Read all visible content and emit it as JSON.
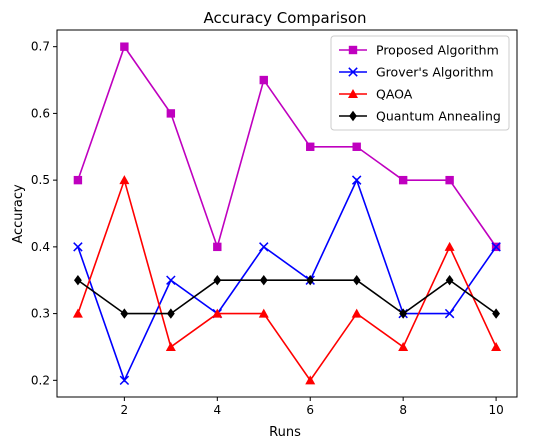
{
  "chart_data": {
    "type": "line",
    "title": "Accuracy Comparison",
    "xlabel": "Runs",
    "ylabel": "Accuracy",
    "x": [
      1,
      2,
      3,
      4,
      5,
      6,
      7,
      8,
      9,
      10
    ],
    "xlim": [
      0.55,
      10.45
    ],
    "ylim": [
      0.175,
      0.725
    ],
    "xticks": [
      2,
      4,
      6,
      8,
      10
    ],
    "yticks": [
      0.2,
      0.3,
      0.4,
      0.5,
      0.6,
      0.7
    ],
    "grid": false,
    "legend_position": "top-right",
    "series": [
      {
        "name": "Proposed Algorithm",
        "color": "#bf00bf",
        "marker": "square",
        "values": [
          0.5,
          0.7,
          0.6,
          0.4,
          0.65,
          0.55,
          0.55,
          0.5,
          0.5,
          0.4
        ]
      },
      {
        "name": "Grover's Algorithm",
        "color": "#0000ff",
        "marker": "x",
        "values": [
          0.4,
          0.2,
          0.35,
          0.3,
          0.4,
          0.35,
          0.5,
          0.3,
          0.3,
          0.4
        ]
      },
      {
        "name": "QAOA",
        "color": "#ff0000",
        "marker": "triangle",
        "values": [
          0.3,
          0.5,
          0.25,
          0.3,
          0.3,
          0.2,
          0.3,
          0.25,
          0.4,
          0.25
        ]
      },
      {
        "name": "Quantum Annealing",
        "color": "#000000",
        "marker": "diamond",
        "values": [
          0.35,
          0.3,
          0.3,
          0.35,
          0.35,
          0.35,
          0.35,
          0.3,
          0.35,
          0.3
        ]
      }
    ]
  }
}
